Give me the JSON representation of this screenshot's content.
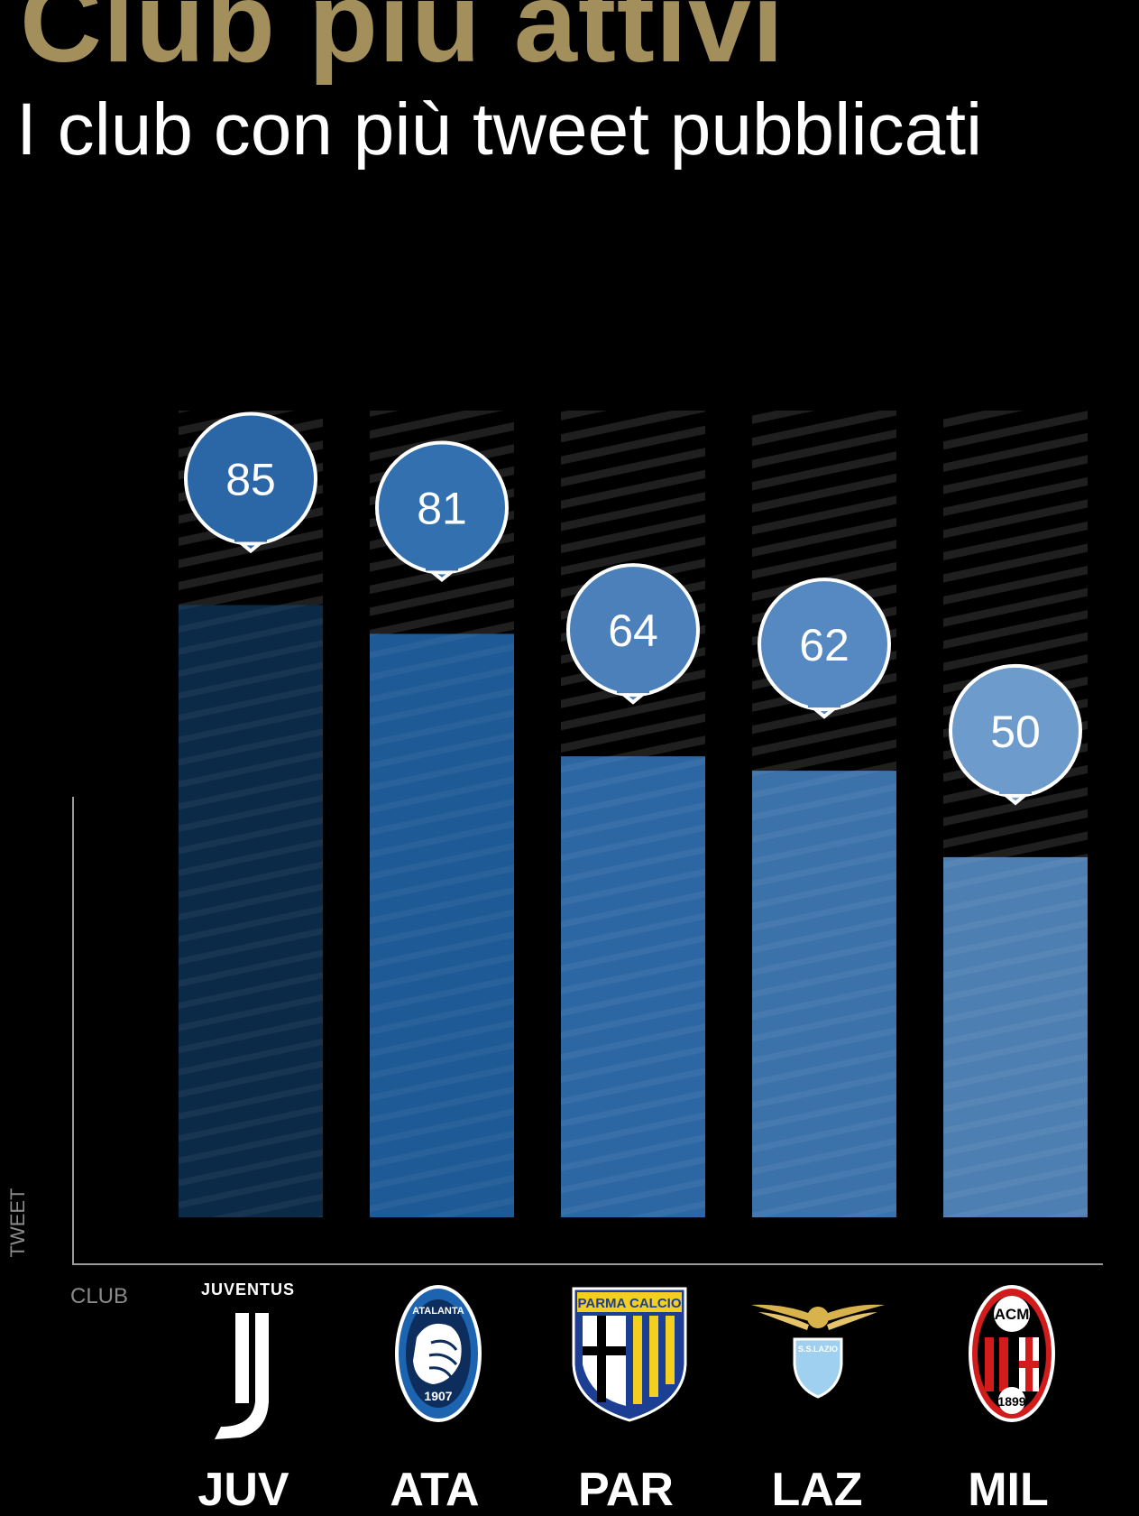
{
  "title": "Club più attivi",
  "subtitle": "I club con più tweet pubblicati",
  "colors": {
    "title_gold": "#a38f5c",
    "text": "#ffffff",
    "axis": "#9a9a9a",
    "bubble_stroke": "#ffffff",
    "bars": [
      "#0b2a48",
      "#1e5a96",
      "#2d67a3",
      "#3c72aa",
      "#4e7fb2"
    ],
    "bubbles": [
      "#2b66a6",
      "#3270b0",
      "#4b80ba",
      "#5689c1",
      "#6d9bcc"
    ]
  },
  "chart_data": {
    "type": "bar",
    "title": "Club più attivi",
    "subtitle": "I club con più tweet pubblicati",
    "xlabel": "CLUB",
    "ylabel": "TWEET",
    "categories": [
      "JUV",
      "ATA",
      "PAR",
      "LAZ",
      "MIL"
    ],
    "values": [
      85,
      81,
      64,
      62,
      50
    ],
    "ylim": [
      0,
      112
    ],
    "grid": false,
    "legend": "none",
    "logos": [
      {
        "name": "juventus-logo",
        "text": "JUVENTUS"
      },
      {
        "name": "atalanta-logo",
        "text": "ATALANTA",
        "year": "1907"
      },
      {
        "name": "parma-logo",
        "text": "PARMA CALCIO"
      },
      {
        "name": "lazio-logo",
        "text": "S.S.LAZIO"
      },
      {
        "name": "milan-logo",
        "text": "ACM",
        "year": "1899"
      }
    ]
  }
}
